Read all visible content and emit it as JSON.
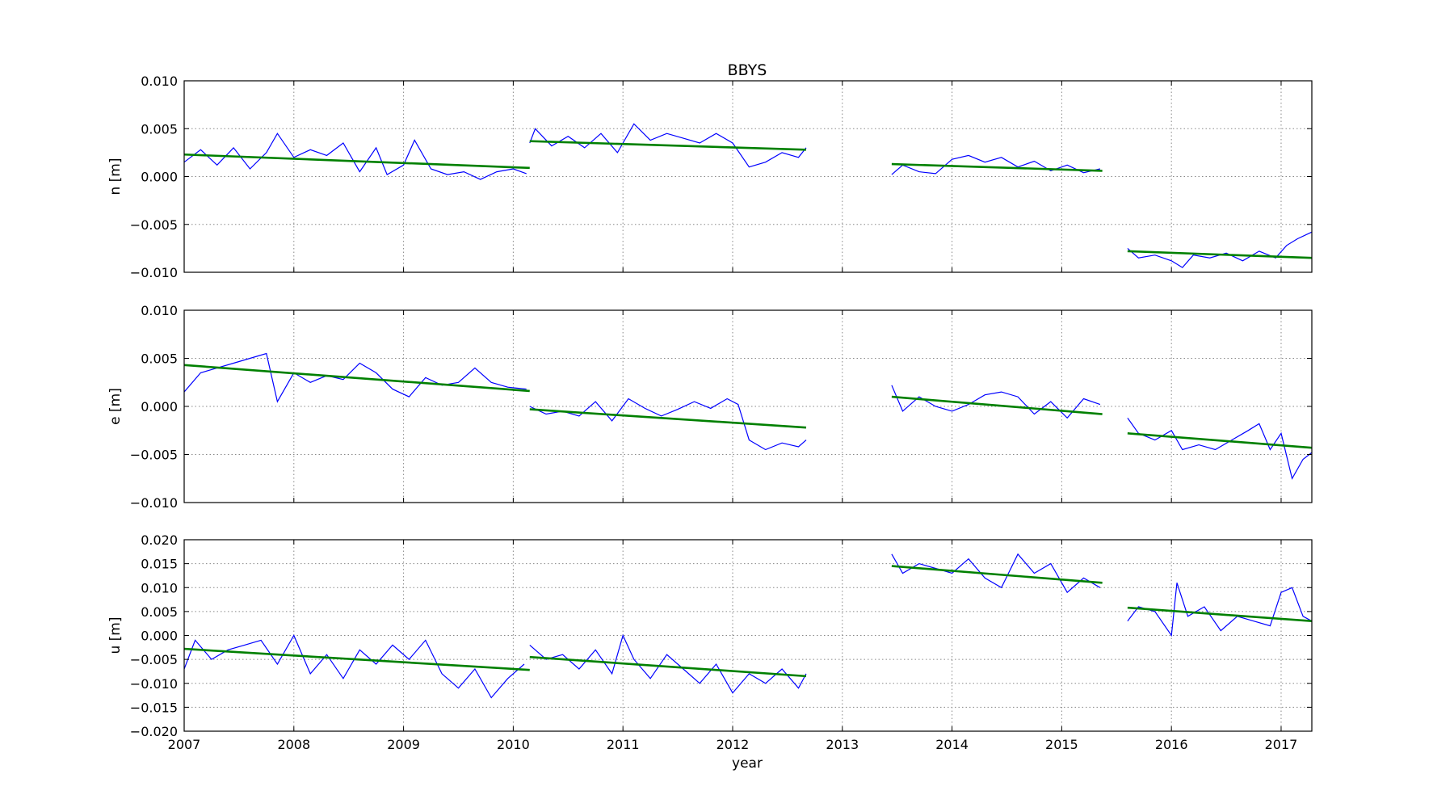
{
  "chart_data": {
    "type": "line",
    "title": "BBYS",
    "xlabel": "year",
    "xlim": [
      2007.0,
      2017.28
    ],
    "xticks": [
      2007,
      2008,
      2009,
      2010,
      2011,
      2012,
      2013,
      2014,
      2015,
      2016,
      2017
    ],
    "xtick_labels": [
      "2007",
      "2008",
      "2009",
      "2010",
      "2011",
      "2012",
      "2013",
      "2014",
      "2015",
      "2016",
      "2017"
    ],
    "grid": true,
    "colors": {
      "data": "#0000ff",
      "trend": "#008000"
    },
    "panels": [
      {
        "ylabel": "n [m]",
        "ylim": [
          -0.01,
          0.01
        ],
        "yticks": [
          0.01,
          0.005,
          0.0,
          -0.005,
          -0.01
        ],
        "ytick_labels": [
          "0.010",
          "0.005",
          "0.000",
          "−0.005",
          "−0.010"
        ],
        "segments": [
          {
            "x": [
              2007.0,
              2007.15,
              2007.3,
              2007.45,
              2007.6,
              2007.75,
              2007.85,
              2008.0,
              2008.15,
              2008.3,
              2008.45,
              2008.6,
              2008.75,
              2008.85,
              2009.0,
              2009.1,
              2009.25,
              2009.4,
              2009.55,
              2009.7,
              2009.85,
              2010.0,
              2010.12
            ],
            "y": [
              0.0015,
              0.0028,
              0.0012,
              0.003,
              0.0008,
              0.0025,
              0.0045,
              0.002,
              0.0028,
              0.0022,
              0.0035,
              0.0005,
              0.003,
              0.0002,
              0.0012,
              0.0038,
              0.0008,
              0.0002,
              0.0005,
              -0.0003,
              0.0005,
              0.0008,
              0.0003
            ]
          },
          {
            "x": [
              2010.15,
              2010.2,
              2010.35,
              2010.5,
              2010.65,
              2010.8,
              2010.95,
              2011.1,
              2011.25,
              2011.4,
              2011.55,
              2011.7,
              2011.85,
              2012.0,
              2012.15,
              2012.3,
              2012.45,
              2012.6,
              2012.67
            ],
            "y": [
              0.0035,
              0.005,
              0.0032,
              0.0042,
              0.003,
              0.0045,
              0.0025,
              0.0055,
              0.0038,
              0.0045,
              0.004,
              0.0035,
              0.0045,
              0.0035,
              0.001,
              0.0015,
              0.0025,
              0.002,
              0.003
            ]
          },
          {
            "x": [
              2013.45,
              2013.55,
              2013.7,
              2013.85,
              2014.0,
              2014.15,
              2014.3,
              2014.45,
              2014.6,
              2014.75,
              2014.9,
              2015.05,
              2015.2,
              2015.35
            ],
            "y": [
              0.0002,
              0.0012,
              0.0005,
              0.0003,
              0.0018,
              0.0022,
              0.0015,
              0.002,
              0.001,
              0.0016,
              0.0006,
              0.0012,
              0.0004,
              0.0008
            ]
          },
          {
            "x": [
              2015.6,
              2015.7,
              2015.85,
              2016.0,
              2016.1,
              2016.2,
              2016.35,
              2016.5,
              2016.65,
              2016.8,
              2016.95,
              2017.05,
              2017.15,
              2017.28
            ],
            "y": [
              -0.0075,
              -0.0085,
              -0.0082,
              -0.0088,
              -0.0095,
              -0.0082,
              -0.0085,
              -0.008,
              -0.0088,
              -0.0078,
              -0.0085,
              -0.0072,
              -0.0065,
              -0.0058
            ]
          }
        ],
        "trends": [
          {
            "x": [
              2007.0,
              2010.15
            ],
            "y": [
              0.0023,
              0.0009
            ]
          },
          {
            "x": [
              2010.15,
              2012.67
            ],
            "y": [
              0.0037,
              0.0028
            ]
          },
          {
            "x": [
              2013.45,
              2015.37
            ],
            "y": [
              0.0013,
              0.0006
            ]
          },
          {
            "x": [
              2015.6,
              2017.28
            ],
            "y": [
              -0.0078,
              -0.0085
            ]
          }
        ]
      },
      {
        "ylabel": "e [m]",
        "ylim": [
          -0.01,
          0.01
        ],
        "yticks": [
          0.01,
          0.005,
          0.0,
          -0.005,
          -0.01
        ],
        "ytick_labels": [
          "0.010",
          "0.005",
          "0.000",
          "−0.005",
          "−0.010"
        ],
        "segments": [
          {
            "x": [
              2007.0,
              2007.15,
              2007.3,
              2007.45,
              2007.6,
              2007.75,
              2007.85,
              2008.0,
              2008.15,
              2008.3,
              2008.45,
              2008.6,
              2008.75,
              2008.9,
              2009.05,
              2009.2,
              2009.35,
              2009.5,
              2009.65,
              2009.8,
              2009.95,
              2010.12
            ],
            "y": [
              0.0015,
              0.0035,
              0.004,
              0.0045,
              0.005,
              0.0055,
              0.0005,
              0.0035,
              0.0025,
              0.0032,
              0.0028,
              0.0045,
              0.0035,
              0.0018,
              0.001,
              0.003,
              0.0022,
              0.0025,
              0.004,
              0.0025,
              0.002,
              0.0018
            ]
          },
          {
            "x": [
              2010.15,
              2010.3,
              2010.45,
              2010.6,
              2010.75,
              2010.9,
              2011.05,
              2011.2,
              2011.35,
              2011.5,
              2011.65,
              2011.8,
              2011.95,
              2012.05,
              2012.15,
              2012.3,
              2012.45,
              2012.6,
              2012.67
            ],
            "y": [
              0.0,
              -0.0008,
              -0.0005,
              -0.001,
              0.0005,
              -0.0015,
              0.0008,
              -0.0002,
              -0.001,
              -0.0003,
              0.0005,
              -0.0002,
              0.0008,
              0.0002,
              -0.0035,
              -0.0045,
              -0.0038,
              -0.0042,
              -0.0035
            ]
          },
          {
            "x": [
              2013.45,
              2013.55,
              2013.7,
              2013.85,
              2014.0,
              2014.15,
              2014.3,
              2014.45,
              2014.6,
              2014.75,
              2014.9,
              2015.05,
              2015.2,
              2015.35
            ],
            "y": [
              0.0022,
              -0.0005,
              0.001,
              0.0,
              -0.0005,
              0.0002,
              0.0012,
              0.0015,
              0.001,
              -0.0008,
              0.0005,
              -0.0012,
              0.0008,
              0.0002
            ]
          },
          {
            "x": [
              2015.6,
              2015.7,
              2015.85,
              2016.0,
              2016.1,
              2016.25,
              2016.4,
              2016.55,
              2016.7,
              2016.8,
              2016.9,
              2017.0,
              2017.1,
              2017.2,
              2017.28
            ],
            "y": [
              -0.0012,
              -0.0028,
              -0.0035,
              -0.0025,
              -0.0045,
              -0.004,
              -0.0045,
              -0.0035,
              -0.0025,
              -0.0018,
              -0.0045,
              -0.0028,
              -0.0075,
              -0.0055,
              -0.0048
            ]
          }
        ],
        "trends": [
          {
            "x": [
              2007.0,
              2010.15
            ],
            "y": [
              0.0043,
              0.0016
            ]
          },
          {
            "x": [
              2010.15,
              2012.67
            ],
            "y": [
              -0.0003,
              -0.0022
            ]
          },
          {
            "x": [
              2013.45,
              2015.37
            ],
            "y": [
              0.001,
              -0.0008
            ]
          },
          {
            "x": [
              2015.6,
              2017.28
            ],
            "y": [
              -0.0028,
              -0.0043
            ]
          }
        ]
      },
      {
        "ylabel": "u [m]",
        "ylim": [
          -0.02,
          0.02
        ],
        "yticks": [
          0.02,
          0.015,
          0.01,
          0.005,
          0.0,
          -0.005,
          -0.01,
          -0.015,
          -0.02
        ],
        "ytick_labels": [
          "0.020",
          "0.015",
          "0.010",
          "0.005",
          "0.000",
          "−0.005",
          "−0.010",
          "−0.015",
          "−0.020"
        ],
        "segments": [
          {
            "x": [
              2007.0,
              2007.1,
              2007.25,
              2007.4,
              2007.55,
              2007.7,
              2007.85,
              2008.0,
              2008.15,
              2008.3,
              2008.45,
              2008.6,
              2008.75,
              2008.9,
              2009.05,
              2009.2,
              2009.35,
              2009.5,
              2009.65,
              2009.8,
              2009.95,
              2010.1
            ],
            "y": [
              -0.007,
              -0.001,
              -0.005,
              -0.003,
              -0.002,
              -0.001,
              -0.006,
              0.0,
              -0.008,
              -0.004,
              -0.009,
              -0.003,
              -0.006,
              -0.002,
              -0.005,
              -0.001,
              -0.008,
              -0.011,
              -0.007,
              -0.013,
              -0.009,
              -0.006
            ]
          },
          {
            "x": [
              2010.15,
              2010.3,
              2010.45,
              2010.6,
              2010.75,
              2010.9,
              2011.0,
              2011.1,
              2011.25,
              2011.4,
              2011.55,
              2011.7,
              2011.85,
              2012.0,
              2012.15,
              2012.3,
              2012.45,
              2012.6,
              2012.67
            ],
            "y": [
              -0.002,
              -0.005,
              -0.004,
              -0.007,
              -0.003,
              -0.008,
              0.0,
              -0.005,
              -0.009,
              -0.004,
              -0.007,
              -0.01,
              -0.006,
              -0.012,
              -0.008,
              -0.01,
              -0.007,
              -0.011,
              -0.008
            ]
          },
          {
            "x": [
              2013.45,
              2013.55,
              2013.7,
              2013.85,
              2014.0,
              2014.15,
              2014.3,
              2014.45,
              2014.6,
              2014.75,
              2014.9,
              2015.05,
              2015.2,
              2015.35
            ],
            "y": [
              0.017,
              0.013,
              0.015,
              0.014,
              0.013,
              0.016,
              0.012,
              0.01,
              0.017,
              0.013,
              0.015,
              0.009,
              0.012,
              0.01
            ]
          },
          {
            "x": [
              2015.6,
              2015.7,
              2015.85,
              2016.0,
              2016.05,
              2016.15,
              2016.3,
              2016.45,
              2016.6,
              2016.75,
              2016.9,
              2017.0,
              2017.1,
              2017.2,
              2017.28
            ],
            "y": [
              0.003,
              0.006,
              0.005,
              0.0,
              0.011,
              0.004,
              0.006,
              0.001,
              0.004,
              0.003,
              0.002,
              0.009,
              0.01,
              0.004,
              0.003
            ]
          }
        ],
        "trends": [
          {
            "x": [
              2007.0,
              2010.15
            ],
            "y": [
              -0.0028,
              -0.0072
            ]
          },
          {
            "x": [
              2010.15,
              2012.67
            ],
            "y": [
              -0.0045,
              -0.0085
            ]
          },
          {
            "x": [
              2013.45,
              2015.37
            ],
            "y": [
              0.0145,
              0.011
            ]
          },
          {
            "x": [
              2015.6,
              2017.28
            ],
            "y": [
              0.0058,
              0.003
            ]
          }
        ]
      }
    ]
  }
}
